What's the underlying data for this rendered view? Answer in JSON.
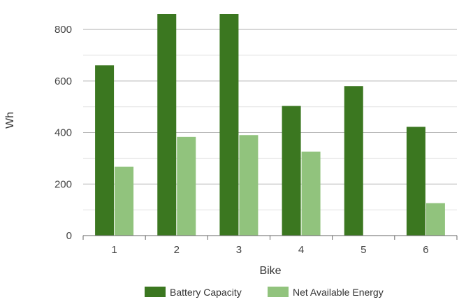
{
  "chart_data": {
    "type": "bar",
    "title": "",
    "xlabel": "Bike",
    "ylabel": "Wh",
    "categories": [
      "1",
      "2",
      "3",
      "4",
      "5",
      "6"
    ],
    "ylim": [
      0,
      860
    ],
    "yticks": [
      0,
      200,
      400,
      600,
      800
    ],
    "grid": true,
    "legend_position": "bottom",
    "series": [
      {
        "name": "Battery Capacity",
        "color": "#3b7720",
        "values": [
          661,
          860,
          860,
          503,
          580,
          422
        ]
      },
      {
        "name": "Net Available Energy",
        "color": "#91c37d",
        "values": [
          267,
          383,
          390,
          326,
          0,
          126
        ]
      }
    ]
  }
}
